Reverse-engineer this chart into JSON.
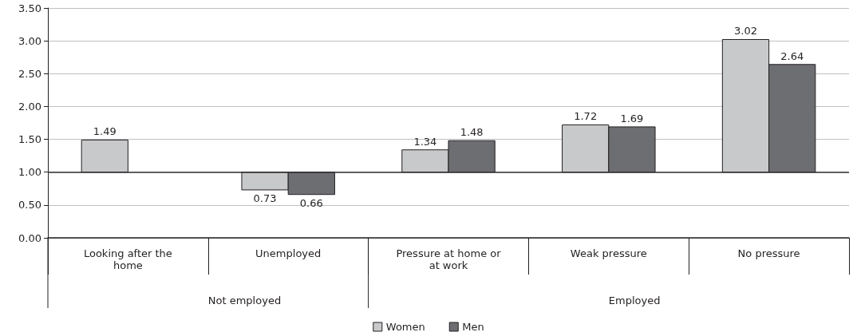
{
  "chart_data": {
    "type": "bar",
    "categories": [
      "Looking after the home",
      "Unemployed",
      "Pressure at home or at work",
      "Weak pressure",
      "No pressure"
    ],
    "series": [
      {
        "name": "Women",
        "color": "#c8c9cb",
        "base": [
          1,
          1,
          1,
          1,
          1
        ],
        "values": [
          0.49,
          -0.27,
          0.34,
          0.72,
          2.02
        ],
        "value_labels": [
          "1.49",
          "0.73",
          "1.34",
          "1.72",
          "3.02"
        ]
      },
      {
        "name": "Men",
        "color": "#6d6e71",
        "base": [
          null,
          1,
          1,
          1,
          1
        ],
        "values": [
          null,
          -0.34,
          0.48,
          0.69,
          1.64
        ],
        "value_labels": [
          null,
          "0.66",
          "1.48",
          "1.69",
          "2.64"
        ]
      }
    ],
    "ylim": [
      0,
      3.5
    ],
    "yticks": [
      {
        "value": 0,
        "label": "0.00"
      },
      {
        "value": 0.5,
        "label": "0.50"
      },
      {
        "value": 1,
        "label": "1.00"
      },
      {
        "value": 1.5,
        "label": "1.50"
      },
      {
        "value": 2,
        "label": "2.00"
      },
      {
        "value": 2.5,
        "label": "2.50"
      },
      {
        "value": 3,
        "label": "3.00"
      },
      {
        "value": 3.5,
        "label": "3.50"
      }
    ],
    "ref_lines": [
      {
        "axis": "y",
        "value": 1,
        "color": "#333333"
      }
    ],
    "annotations": [
      "Not employed",
      "Employed"
    ],
    "grid": "y",
    "legend": "bottom"
  }
}
